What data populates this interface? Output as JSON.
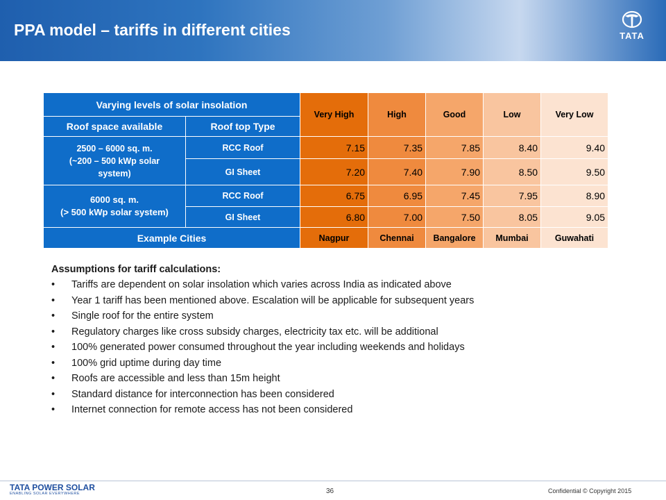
{
  "header": {
    "title": "PPA model – tariffs in different cities",
    "logo_text": "TATA"
  },
  "table": {
    "group_header": "Varying levels of solar insolation",
    "roof_space_header": "Roof space available",
    "roof_type_header": "Roof top Type",
    "levels": [
      "Very High",
      "High",
      "Good",
      "Low",
      "Very Low"
    ],
    "groups": [
      {
        "space_line1": "2500 – 6000 sq. m.",
        "space_line2": "(~200 – 500 kWp solar",
        "space_line3": "system)",
        "rows": [
          {
            "type": "RCC Roof",
            "values": [
              "7.15",
              "7.35",
              "7.85",
              "8.40",
              "9.40"
            ]
          },
          {
            "type": "GI Sheet",
            "values": [
              "7.20",
              "7.40",
              "7.90",
              "8.50",
              "9.50"
            ]
          }
        ]
      },
      {
        "space_line1": "6000 sq. m.",
        "space_line2": "(> 500 kWp solar system)",
        "rows": [
          {
            "type": "RCC Roof",
            "values": [
              "6.75",
              "6.95",
              "7.45",
              "7.95",
              "8.90"
            ]
          },
          {
            "type": "GI Sheet",
            "values": [
              "6.80",
              "7.00",
              "7.50",
              "8.05",
              "9.05"
            ]
          }
        ]
      }
    ],
    "example_cities_label": "Example Cities",
    "cities": [
      "Nagpur",
      "Chennai",
      "Bangalore",
      "Mumbai",
      "Guwahati"
    ],
    "colors": [
      "#e46d0a",
      "#ef8a3e",
      "#f5a66a",
      "#f9c59f",
      "#fce3d1"
    ]
  },
  "assumptions": {
    "title": "Assumptions for tariff calculations:",
    "items": [
      "Tariffs are dependent on solar  insolation which varies across India as indicated above",
      "Year 1 tariff has been mentioned above. Escalation will be applicable for subsequent years",
      "Single roof for the entire system",
      "Regulatory charges like cross subsidy charges, electricity tax etc. will be additional",
      "100% generated power consumed throughout the year including weekends and holidays",
      "100% grid uptime during day time",
      "Roofs are accessible and less than 15m height",
      "Standard distance for interconnection has been considered",
      "Internet connection for remote access has not been considered"
    ]
  },
  "footer": {
    "logo_main": "TATA POWER SOLAR",
    "logo_sub": "ENABLING SOLAR EVERYWHERE",
    "page_number": "36",
    "copyright": "Confidential © Copyright 2015"
  }
}
